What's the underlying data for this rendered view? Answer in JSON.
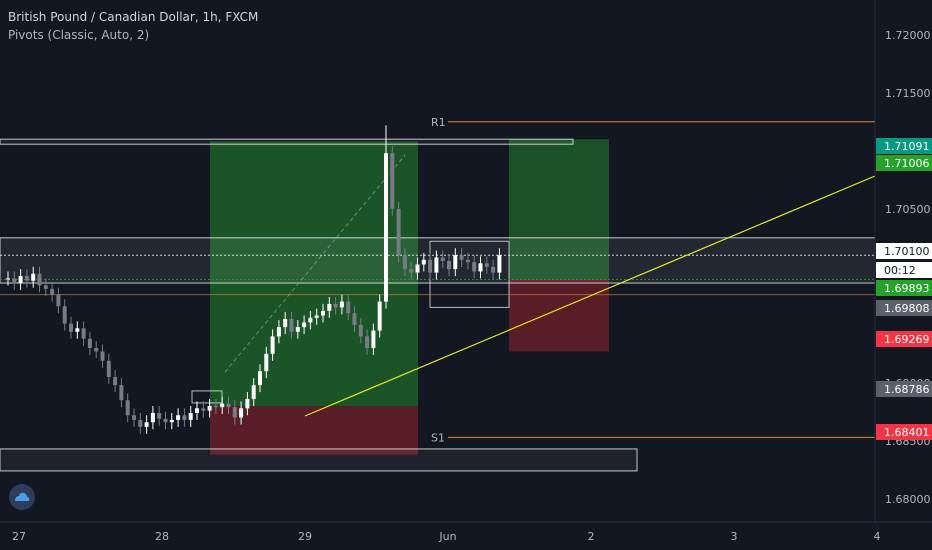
{
  "header": {
    "symbol_title": "British Pound / Canadian Dollar, 1h, FXCM",
    "indicator": "Pivots (Classic, Auto, 2)"
  },
  "pivots": {
    "r1": {
      "label": "R1",
      "price": 1.7125
    },
    "s1": {
      "label": "S1",
      "price": 1.6853
    }
  },
  "price_axis": {
    "ticks": [
      "1.72000",
      "1.71500",
      "1.70500",
      "1.70000",
      "1.69000",
      "1.68500",
      "1.68000"
    ],
    "badges": [
      {
        "text": "1.71091",
        "bg": "#089981",
        "fg": "#ffffff",
        "key": "tp-long-high"
      },
      {
        "text": "1.71006",
        "bg": "#26a22a",
        "fg": "#ffffff",
        "key": "tp-long"
      },
      {
        "text": "1.70100",
        "bg": "#ffffff",
        "fg": "#131722",
        "key": "last-price"
      },
      {
        "text": "00:12",
        "bg": "#ffffff",
        "fg": "#131722",
        "key": "countdown"
      },
      {
        "text": "1.69893",
        "bg": "#26a22a",
        "fg": "#ffffff",
        "key": "entry"
      },
      {
        "text": "1.69808",
        "bg": "#5d606b",
        "fg": "#ffffff",
        "key": "pivot-p"
      },
      {
        "text": "1.69269",
        "bg": "#f23645",
        "fg": "#ffffff",
        "key": "stop"
      },
      {
        "text": "1.68786",
        "bg": "#5d606b",
        "fg": "#ffffff",
        "key": "level"
      },
      {
        "text": "1.68401",
        "bg": "#f23645",
        "fg": "#ffffff",
        "key": "stop-low"
      }
    ]
  },
  "time_axis": {
    "labels": [
      "27",
      "28",
      "29",
      "Jun",
      "2",
      "3",
      "4"
    ]
  },
  "colors": {
    "background": "#131722",
    "candle_up": "#ffffff",
    "candle_down": "#787b86",
    "profit_zone": "#1f6b2a",
    "loss_zone": "#6b1f2a",
    "pivot_line": "#e08a3a",
    "trendline": "#e6e62e"
  },
  "chart_data": {
    "type": "candlestick",
    "symbol": "GBPCAD",
    "interval": "1h",
    "ylim": [
      1.678,
      1.723
    ],
    "close_series": [
      1.699,
      1.6986,
      1.6992,
      1.6988,
      1.6994,
      1.6984,
      1.6981,
      1.6976,
      1.6966,
      1.6951,
      1.6944,
      1.6947,
      1.6938,
      1.693,
      1.6927,
      1.6919,
      1.6905,
      1.6898,
      1.6885,
      1.6872,
      1.6868,
      1.6862,
      1.6866,
      1.6874,
      1.6869,
      1.6866,
      1.6868,
      1.6872,
      1.6868,
      1.6874,
      1.6878,
      1.6876,
      1.688,
      1.6879,
      1.6882,
      1.6879,
      1.687,
      1.6878,
      1.6886,
      1.6898,
      1.691,
      1.6925,
      1.694,
      1.6948,
      1.6955,
      1.6944,
      1.6948,
      1.6952,
      1.6956,
      1.6958,
      1.6962,
      1.6968,
      1.6965,
      1.697,
      1.696,
      1.695,
      1.694,
      1.693,
      1.6945,
      1.697,
      1.7098,
      1.705,
      1.701,
      1.6998,
      1.6995,
      1.7002,
      1.7006,
      1.6995,
      1.7008,
      1.7005,
      1.6998,
      1.701,
      1.7006,
      1.7004,
      1.6996,
      1.7003,
      1.7,
      1.6995,
      1.701
    ]
  }
}
